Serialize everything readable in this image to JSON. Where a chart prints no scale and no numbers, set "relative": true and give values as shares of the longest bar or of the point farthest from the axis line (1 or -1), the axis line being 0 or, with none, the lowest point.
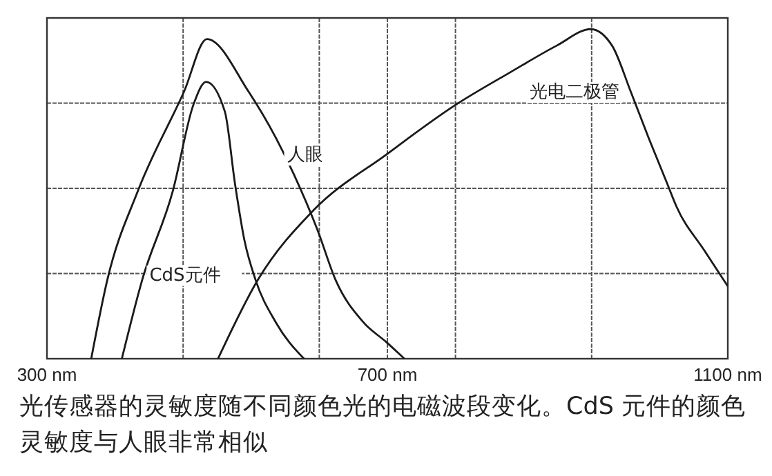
{
  "chart_data": {
    "type": "line",
    "relative": true,
    "grid": true,
    "marker": "none",
    "line_style": "solid",
    "xlim": [
      300,
      1100
    ],
    "xticks": [
      {
        "value": 300,
        "label": "300 nm"
      },
      {
        "value": 460,
        "label": null
      },
      {
        "value": 620,
        "label": null
      },
      {
        "value": 700,
        "label": "700 nm"
      },
      {
        "value": 780,
        "label": null
      },
      {
        "value": 940,
        "label": null
      },
      {
        "value": 1100,
        "label": "1100 nm"
      }
    ],
    "series": [
      {
        "name": "人眼",
        "color": "#1a1a1a",
        "x": [
          352,
          371,
          407,
          461,
          488,
          537,
          569,
          590,
          618,
          639,
          672,
          699,
          720
        ],
        "values": [
          0,
          0.24,
          0.51,
          0.81,
          0.97,
          0.81,
          0.67,
          0.56,
          0.39,
          0.24,
          0.11,
          0.05,
          0
        ]
      },
      {
        "name": "CdS元件",
        "color": "#1a1a1a",
        "x": [
          388,
          412,
          448,
          472,
          487,
          509,
          521,
          532,
          545,
          569,
          602
        ],
        "values": [
          0,
          0.24,
          0.51,
          0.77,
          0.84,
          0.75,
          0.53,
          0.36,
          0.24,
          0.11,
          0
        ]
      },
      {
        "name": "光电二极管",
        "color": "#1a1a1a",
        "x": [
          501,
          548,
          613,
          699,
          780,
          845,
          899,
          939,
          964,
          986,
          1007,
          1029,
          1040,
          1072,
          1100
        ],
        "values": [
          0,
          0.24,
          0.45,
          0.62,
          0.77,
          0.87,
          0.95,
          1,
          0.95,
          0.81,
          0.67,
          0.53,
          0.46,
          0.33,
          0.22
        ]
      }
    ],
    "annotations": [
      "光传感器的灵敏度随不同颜色光的电磁波段变化。CdS 元件的颜色灵敏度与人眼非常相似"
    ]
  }
}
